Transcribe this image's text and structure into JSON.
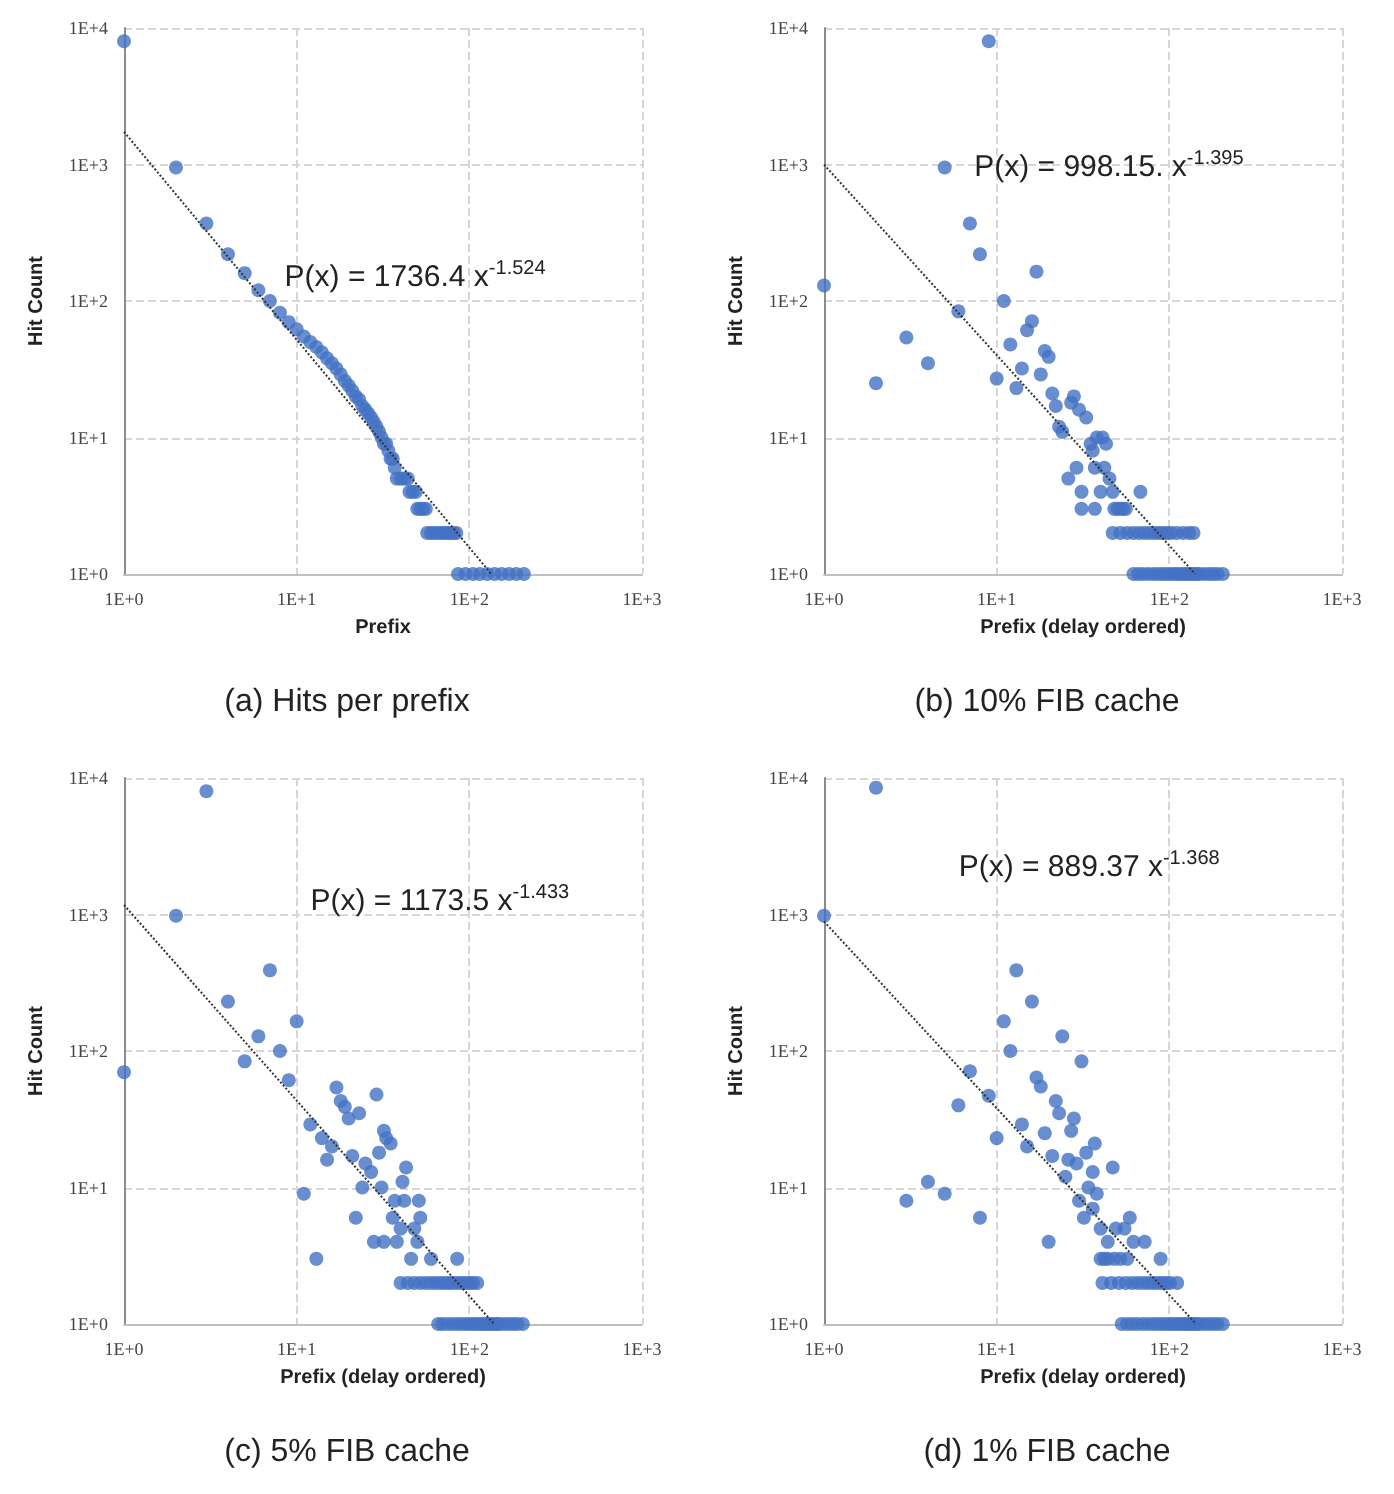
{
  "chart_data": [
    {
      "type": "scatter",
      "title": "(a) Hits per prefix",
      "xlabel": "Prefix",
      "ylabel": "Hit Count",
      "annotations": [
        "P(x) = 1736.4  x$^{-1.524}$"
      ],
      "log": "xy",
      "grid": true,
      "marker": "circle",
      "xlim": [
        1,
        1000
      ],
      "xticks": [
        {
          "value": 1,
          "label": "1E+0"
        },
        {
          "value": 10,
          "label": "1E+1"
        },
        {
          "value": 100,
          "label": "1E+2"
        },
        {
          "value": 1000,
          "label": "1E+3"
        }
      ],
      "ylim": [
        1,
        10000
      ],
      "yticks": [
        {
          "value": 1,
          "label": "1E+0"
        },
        {
          "value": 10,
          "label": "1E+1"
        },
        {
          "value": 100,
          "label": "1E+2"
        },
        {
          "value": 1000,
          "label": "1E+3"
        },
        {
          "value": 10000,
          "label": "1E+4"
        }
      ],
      "series": [
        {
          "color": "#4472c4",
          "x": [
            1,
            2,
            3,
            4,
            5,
            6,
            7,
            8,
            9,
            10,
            11,
            12,
            13,
            14,
            15,
            16,
            17,
            18,
            19,
            20,
            21,
            22,
            23,
            24,
            25,
            26,
            27,
            28,
            29,
            30,
            31,
            32,
            33,
            34,
            35,
            36,
            37,
            38,
            40,
            42,
            44,
            45,
            47,
            49,
            50,
            52,
            54,
            56,
            57,
            60,
            63,
            66,
            69,
            72,
            75,
            78,
            81,
            84,
            86,
            95,
            105,
            115,
            127,
            140,
            154,
            170,
            187,
            207
          ],
          "values": [
            8000,
            950,
            370,
            220,
            160,
            120,
            100,
            82,
            70,
            62,
            55,
            50,
            46,
            42,
            38,
            35,
            32,
            29,
            26,
            24,
            22,
            20,
            19,
            17,
            16,
            15,
            14,
            13,
            12,
            11,
            10,
            9,
            9,
            8,
            7,
            7,
            6,
            5,
            5,
            5,
            5,
            4,
            4,
            4,
            3,
            3,
            3,
            3,
            2,
            2,
            2,
            2,
            2,
            2,
            2,
            2,
            2,
            2,
            1,
            1,
            1,
            1,
            1,
            1,
            1,
            1,
            1,
            1
          ]
        },
        {
          "type": "line",
          "color": "#333333",
          "line_style": "dotted",
          "marker": "none",
          "x": [
            1,
            134
          ],
          "values": [
            1736.4,
            1
          ]
        }
      ]
    },
    {
      "type": "scatter",
      "title": "(b) 10% FIB cache",
      "xlabel": "Prefix (delay ordered)",
      "ylabel": "Hit Count",
      "annotations": [
        "P(x) = 998.15. x$^{-1.395}$"
      ],
      "log": "xy",
      "grid": true,
      "marker": "circle",
      "xlim": [
        1,
        1000
      ],
      "xticks": [
        {
          "value": 1,
          "label": "1E+0"
        },
        {
          "value": 10,
          "label": "1E+1"
        },
        {
          "value": 100,
          "label": "1E+2"
        },
        {
          "value": 1000,
          "label": "1E+3"
        }
      ],
      "ylim": [
        1,
        10000
      ],
      "yticks": [
        {
          "value": 1,
          "label": "1E+0"
        },
        {
          "value": 10,
          "label": "1E+1"
        },
        {
          "value": 100,
          "label": "1E+2"
        },
        {
          "value": 1000,
          "label": "1E+3"
        },
        {
          "value": 10000,
          "label": "1E+4"
        }
      ],
      "series": [
        {
          "color": "#4472c4",
          "x": [
            1,
            2,
            3,
            4,
            5,
            6,
            7,
            8,
            9,
            10,
            11,
            12,
            13,
            14,
            15,
            16,
            17,
            18,
            19,
            20,
            21,
            22,
            23,
            24,
            26,
            27,
            28,
            29,
            30,
            31,
            31,
            33,
            35,
            36,
            37,
            37,
            38,
            40,
            41,
            42,
            43,
            45,
            47,
            48,
            50,
            52,
            54,
            56,
            68,
            47,
            52,
            57,
            62,
            67,
            72,
            77,
            82,
            87,
            92,
            97,
            102,
            110,
            120,
            130,
            138,
            62,
            66,
            70,
            75,
            80,
            85,
            90,
            95,
            100,
            105,
            110,
            115,
            120,
            125,
            130,
            135,
            140,
            145,
            150,
            160,
            170,
            180,
            190,
            204
          ],
          "values": [
            130,
            25,
            54,
            35,
            950,
            84,
            370,
            220,
            8000,
            27,
            100,
            48,
            23,
            32,
            61,
            71,
            164,
            29,
            43,
            39,
            21,
            17,
            12,
            11,
            5,
            18,
            20,
            6,
            16,
            4,
            3,
            14,
            9,
            8,
            6,
            3,
            10,
            4,
            10,
            6,
            9,
            5,
            4,
            3,
            3,
            3,
            3,
            3,
            4,
            2,
            2,
            2,
            2,
            2,
            2,
            2,
            2,
            2,
            2,
            2,
            2,
            2,
            2,
            2,
            2,
            1,
            1,
            1,
            1,
            1,
            1,
            1,
            1,
            1,
            1,
            1,
            1,
            1,
            1,
            1,
            1,
            1,
            1,
            1,
            1,
            1,
            1,
            1,
            1
          ]
        },
        {
          "type": "line",
          "color": "#333333",
          "line_style": "dotted",
          "marker": "none",
          "x": [
            1,
            141
          ],
          "values": [
            998.15,
            1
          ]
        }
      ]
    },
    {
      "type": "scatter",
      "title": "(c) 5% FIB cache",
      "xlabel": "Prefix (delay ordered)",
      "ylabel": "Hit Count",
      "annotations": [
        "P(x) = 1173.5  x$^{-1.433}$"
      ],
      "log": "xy",
      "grid": true,
      "marker": "circle",
      "xlim": [
        1,
        1000
      ],
      "xticks": [
        {
          "value": 1,
          "label": "1E+0"
        },
        {
          "value": 10,
          "label": "1E+1"
        },
        {
          "value": 100,
          "label": "1E+2"
        },
        {
          "value": 1000,
          "label": "1E+3"
        }
      ],
      "ylim": [
        1,
        10000
      ],
      "yticks": [
        {
          "value": 1,
          "label": "1E+0"
        },
        {
          "value": 10,
          "label": "1E+1"
        },
        {
          "value": 100,
          "label": "1E+2"
        },
        {
          "value": 1000,
          "label": "1E+3"
        },
        {
          "value": 10000,
          "label": "1E+4"
        }
      ],
      "series": [
        {
          "color": "#4472c4",
          "x": [
            1,
            2,
            3,
            4,
            5,
            6,
            7,
            8,
            9,
            10,
            11,
            12,
            13,
            14,
            15,
            16,
            17,
            18,
            19,
            20,
            21,
            22,
            23,
            24,
            25,
            27,
            28,
            29,
            30,
            31,
            32,
            32,
            33,
            35,
            36,
            37,
            38,
            40,
            41,
            42,
            43,
            46,
            48,
            50,
            51,
            52,
            60,
            85,
            40,
            44,
            48,
            52,
            56,
            60,
            64,
            68,
            72,
            76,
            80,
            85,
            90,
            95,
            100,
            105,
            111,
            66,
            70,
            75,
            80,
            85,
            90,
            95,
            100,
            105,
            110,
            115,
            120,
            125,
            130,
            135,
            140,
            145,
            150,
            160,
            170,
            180,
            190,
            204
          ],
          "values": [
            70,
            980,
            8000,
            230,
            84,
            128,
            390,
            100,
            61,
            165,
            9,
            29,
            3,
            23,
            16,
            20,
            54,
            43,
            39,
            32,
            17,
            6,
            35,
            10,
            15,
            13,
            4,
            48,
            18,
            10,
            26,
            4,
            23,
            21,
            6,
            8,
            4,
            5,
            11,
            8,
            14,
            3,
            5,
            4,
            8,
            6,
            3,
            3,
            2,
            2,
            2,
            2,
            2,
            2,
            2,
            2,
            2,
            2,
            2,
            2,
            2,
            2,
            2,
            2,
            2,
            1,
            1,
            1,
            1,
            1,
            1,
            1,
            1,
            1,
            1,
            1,
            1,
            1,
            1,
            1,
            1,
            1,
            1,
            1,
            1,
            1,
            1,
            1
          ]
        },
        {
          "type": "line",
          "color": "#333333",
          "line_style": "dotted",
          "marker": "none",
          "x": [
            1,
            139
          ],
          "values": [
            1173.5,
            1
          ]
        }
      ]
    },
    {
      "type": "scatter",
      "title": "(d) 1% FIB cache",
      "xlabel": "Prefix (delay ordered)",
      "ylabel": "Hit Count",
      "annotations": [
        "P(x) = 889.37 x$^{-1.368}$"
      ],
      "log": "xy",
      "grid": true,
      "marker": "circle",
      "xlim": [
        1,
        1000
      ],
      "xticks": [
        {
          "value": 1,
          "label": "1E+0"
        },
        {
          "value": 10,
          "label": "1E+1"
        },
        {
          "value": 100,
          "label": "1E+2"
        },
        {
          "value": 1000,
          "label": "1E+3"
        }
      ],
      "ylim": [
        1,
        10000
      ],
      "yticks": [
        {
          "value": 1,
          "label": "1E+0"
        },
        {
          "value": 10,
          "label": "1E+1"
        },
        {
          "value": 100,
          "label": "1E+2"
        },
        {
          "value": 1000,
          "label": "1E+3"
        },
        {
          "value": 10000,
          "label": "1E+4"
        }
      ],
      "series": [
        {
          "color": "#4472c4",
          "x": [
            1,
            2,
            3,
            4,
            5,
            6,
            7,
            8,
            9,
            10,
            11,
            12,
            13,
            14,
            15,
            16,
            17,
            18,
            19,
            20,
            21,
            22,
            23,
            24,
            25,
            26,
            27,
            28,
            29,
            30,
            31,
            32,
            33,
            34,
            36,
            36,
            37,
            38,
            40,
            42,
            44,
            47,
            49,
            55,
            59,
            62,
            72,
            89,
            40,
            44,
            48,
            52,
            57,
            41,
            46,
            51,
            56,
            61,
            66,
            71,
            76,
            81,
            86,
            91,
            96,
            101,
            111,
            53,
            57,
            61,
            65,
            70,
            75,
            80,
            85,
            90,
            95,
            100,
            105,
            110,
            115,
            120,
            125,
            130,
            135,
            140,
            145,
            150,
            160,
            170,
            180,
            190,
            204
          ],
          "values": [
            980,
            8500,
            8,
            11,
            9,
            40,
            71,
            6,
            47,
            23,
            165,
            100,
            390,
            29,
            20,
            230,
            64,
            55,
            25,
            4,
            17,
            43,
            35,
            128,
            12,
            16,
            26,
            32,
            15,
            8,
            84,
            6,
            18,
            10,
            13,
            7,
            21,
            9,
            5,
            3,
            4,
            14,
            5,
            5,
            6,
            4,
            4,
            3,
            3,
            3,
            3,
            3,
            3,
            2,
            2,
            2,
            2,
            2,
            2,
            2,
            2,
            2,
            2,
            2,
            2,
            2,
            2,
            1,
            1,
            1,
            1,
            1,
            1,
            1,
            1,
            1,
            1,
            1,
            1,
            1,
            1,
            1,
            1,
            1,
            1,
            1,
            1,
            1,
            1,
            1,
            1,
            1,
            1
          ]
        },
        {
          "type": "line",
          "color": "#333333",
          "line_style": "dotted",
          "marker": "none",
          "x": [
            1,
            143
          ],
          "values": [
            889.37,
            1
          ]
        }
      ]
    }
  ]
}
